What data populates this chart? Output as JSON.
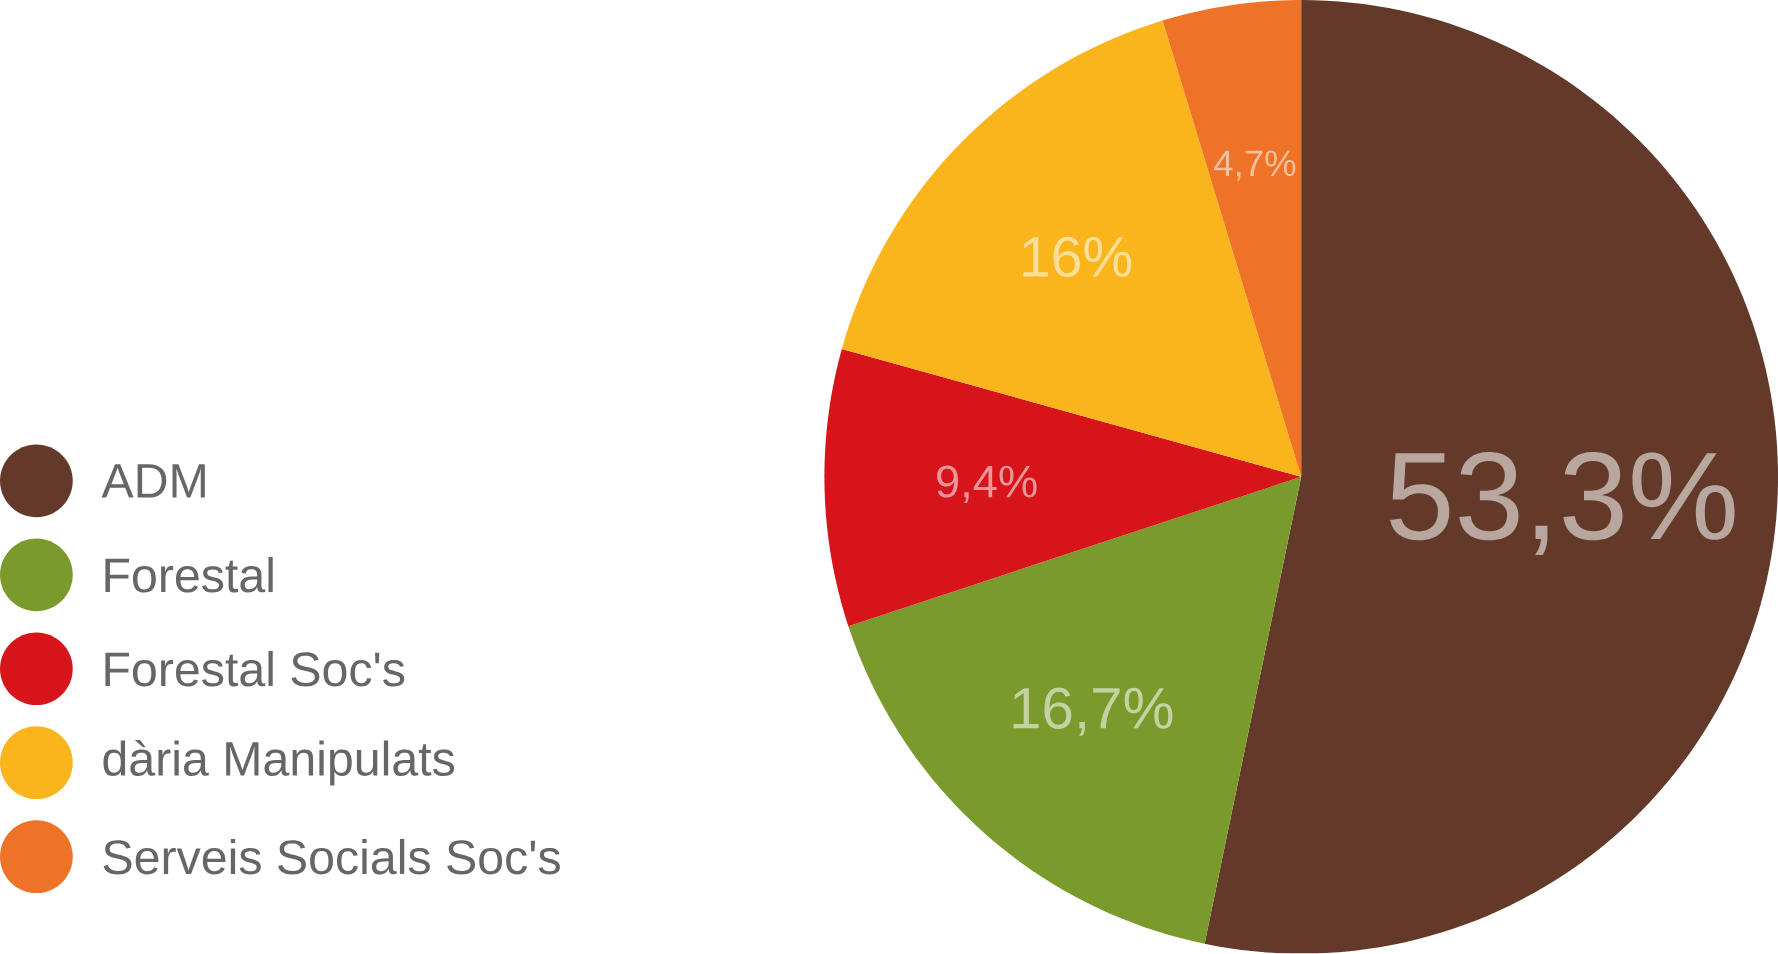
{
  "chart_data": {
    "type": "pie",
    "categories": [
      "ADM",
      "Forestal",
      "Forestal Soc's",
      "dària Manipulats",
      "Serveis Socials Soc's"
    ],
    "values": [
      53.3,
      16.7,
      9.4,
      16,
      4.7
    ],
    "value_labels": [
      "53,3%",
      "16,7%",
      "9,4%",
      "16%",
      "4,7%"
    ],
    "colors": [
      "#633a2a",
      "#7a9a2c",
      "#d7141a",
      "#f9b51b",
      "#ee7326"
    ],
    "legend": "left"
  }
}
